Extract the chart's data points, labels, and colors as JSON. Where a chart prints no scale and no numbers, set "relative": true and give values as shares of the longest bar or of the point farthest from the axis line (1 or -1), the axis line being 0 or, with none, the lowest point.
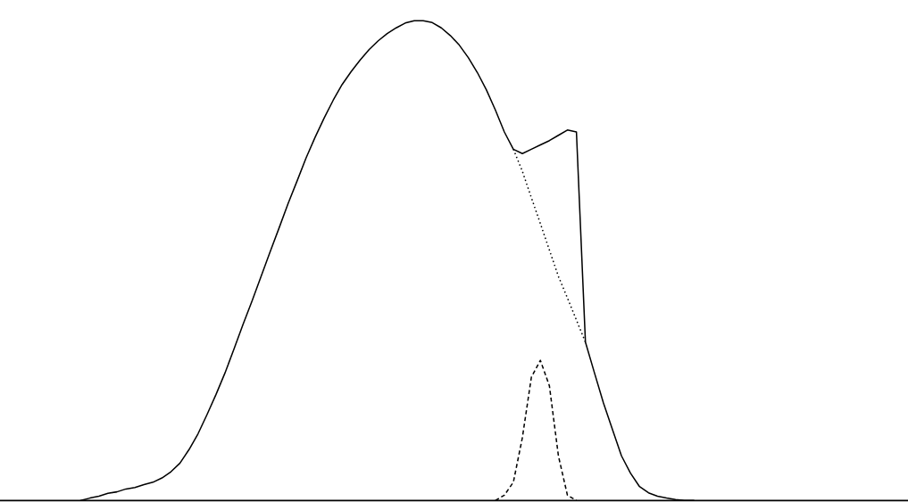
{
  "chart_data": {
    "type": "line",
    "relative": true,
    "legend": false,
    "marker": "none",
    "categories": [
      null,
      null,
      null,
      null,
      null,
      null,
      null,
      null,
      null,
      null,
      null,
      null,
      null,
      null,
      null,
      null,
      null,
      null,
      null,
      null,
      null,
      null,
      null,
      null,
      null,
      null,
      null,
      null,
      null,
      null,
      null,
      null,
      null,
      null,
      null,
      null,
      null,
      null,
      null,
      null,
      null,
      null,
      null,
      null,
      null,
      null,
      null,
      null,
      null,
      null,
      null,
      null,
      null,
      null,
      null,
      null,
      null,
      null,
      null,
      null,
      null,
      null,
      null,
      null,
      null,
      null,
      null,
      null,
      null
    ],
    "series": [
      {
        "color": "#000000",
        "line_style": "solid",
        "values": [
          0,
          0.005,
          0.009,
          0.015,
          0.018,
          0.024,
          0.027,
          0.033,
          0.038,
          0.047,
          0.06,
          0.078,
          0.106,
          0.139,
          0.179,
          0.221,
          0.266,
          0.316,
          0.367,
          0.416,
          0.467,
          0.518,
          0.568,
          0.619,
          0.666,
          0.714,
          0.757,
          0.797,
          0.834,
          0.867,
          0.894,
          0.918,
          0.94,
          0.958,
          0.973,
          0.985,
          0.995,
          1,
          1,
          0.996,
          0.985,
          0.969,
          0.949,
          0.923,
          0.892,
          0.856,
          0.814,
          0.768,
          0.732,
          0.723,
          0.732,
          0.741,
          0.75,
          0.761,
          0.772,
          0.768,
          0.33,
          0.266,
          0.203,
          0.148,
          0.093,
          0.057,
          0.029,
          0.016,
          0.009,
          0.005,
          0.002,
          0,
          0
        ]
      },
      {
        "color": "#000000",
        "line_style": "dotted",
        "values": [
          null,
          null,
          null,
          null,
          null,
          null,
          null,
          null,
          null,
          null,
          null,
          null,
          null,
          null,
          null,
          null,
          null,
          null,
          null,
          null,
          null,
          null,
          null,
          null,
          null,
          null,
          null,
          null,
          null,
          null,
          null,
          null,
          null,
          null,
          null,
          null,
          null,
          null,
          null,
          null,
          null,
          null,
          null,
          null,
          null,
          null,
          null,
          null,
          0.732,
          0.686,
          0.631,
          0.577,
          0.522,
          0.467,
          0.422,
          0.376,
          0.33,
          null,
          null,
          null,
          null,
          null,
          null,
          null,
          null,
          null,
          null,
          null,
          null
        ]
      },
      {
        "color": "#000000",
        "line_style": "dashed",
        "values": [
          null,
          null,
          null,
          null,
          null,
          null,
          null,
          null,
          null,
          null,
          null,
          null,
          null,
          null,
          null,
          null,
          null,
          null,
          null,
          null,
          null,
          null,
          null,
          null,
          null,
          null,
          null,
          null,
          null,
          null,
          null,
          null,
          null,
          null,
          null,
          null,
          null,
          null,
          null,
          null,
          null,
          null,
          null,
          null,
          null,
          null,
          0,
          0.011,
          0.038,
          0.131,
          0.257,
          0.292,
          0.239,
          0.093,
          0.011,
          0,
          null,
          null,
          null,
          null,
          null,
          null,
          null,
          null,
          null,
          null,
          null,
          null,
          null
        ]
      }
    ]
  }
}
